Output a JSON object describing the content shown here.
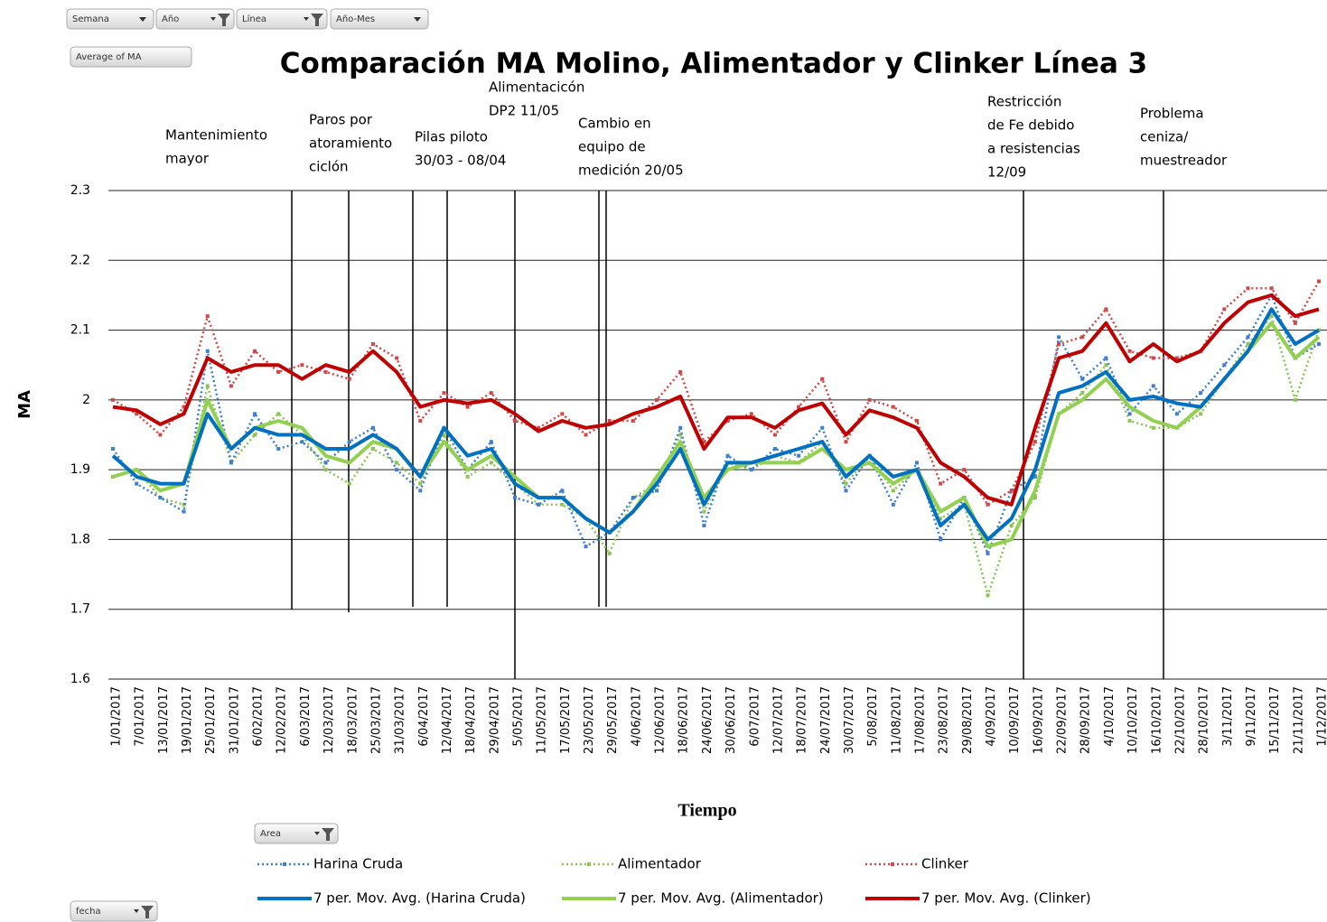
{
  "chart_data": {
    "type": "line",
    "title": "Comparación MA Molino, Alimentador y Clinker Línea 3",
    "x_label": "Tiempo",
    "y_label": "MA",
    "categories": [
      "1/01/2017",
      "7/01/2017",
      "13/01/2017",
      "19/01/2017",
      "25/01/2017",
      "31/01/2017",
      "6/02/2017",
      "12/02/2017",
      "6/03/2017",
      "12/03/2017",
      "18/03/2017",
      "25/03/2017",
      "31/03/2017",
      "6/04/2017",
      "12/04/2017",
      "18/04/2017",
      "29/04/2017",
      "5/05/2017",
      "11/05/2017",
      "17/05/2017",
      "23/05/2017",
      "29/05/2017",
      "4/06/2017",
      "12/06/2017",
      "18/06/2017",
      "24/06/2017",
      "30/06/2017",
      "6/07/2017",
      "12/07/2017",
      "18/07/2017",
      "24/07/2017",
      "30/07/2017",
      "5/08/2017",
      "11/08/2017",
      "17/08/2017",
      "23/08/2017",
      "29/08/2017",
      "4/09/2017",
      "10/09/2017",
      "16/09/2017",
      "22/09/2017",
      "28/09/2017",
      "4/10/2017",
      "10/10/2017",
      "16/10/2017",
      "22/10/2017",
      "28/10/2017",
      "3/11/2017",
      "9/11/2017",
      "15/11/2017",
      "21/11/2017",
      "1/12/2017"
    ],
    "series": [
      {
        "name": "Harina Cruda",
        "color": "#3f7fd0",
        "style": "dotted",
        "values": [
          1.93,
          1.88,
          1.86,
          1.84,
          2.07,
          1.91,
          1.98,
          1.93,
          1.94,
          1.91,
          1.94,
          1.96,
          1.9,
          1.87,
          1.96,
          1.9,
          1.94,
          1.86,
          1.85,
          1.87,
          1.79,
          1.81,
          1.86,
          1.87,
          1.96,
          1.82,
          1.92,
          1.9,
          1.93,
          1.92,
          1.96,
          1.87,
          1.92,
          1.85,
          1.91,
          1.8,
          1.86,
          1.78,
          1.87,
          1.89,
          2.09,
          2.03,
          2.06,
          1.98,
          2.02,
          1.98,
          2.01,
          2.05,
          2.09,
          2.15,
          2.06,
          2.08
        ]
      },
      {
        "name": "Alimentador",
        "color": "#8cc456",
        "style": "dotted",
        "values": [
          1.89,
          1.9,
          1.86,
          1.85,
          2.02,
          1.91,
          1.95,
          1.98,
          1.95,
          1.9,
          1.88,
          1.93,
          1.91,
          1.88,
          1.95,
          1.89,
          1.91,
          1.88,
          1.85,
          1.85,
          1.83,
          1.78,
          1.86,
          1.88,
          1.95,
          1.84,
          1.91,
          1.9,
          1.92,
          1.91,
          1.94,
          1.88,
          1.92,
          1.87,
          1.9,
          1.83,
          1.85,
          1.72,
          1.82,
          1.86,
          1.98,
          2.01,
          2.05,
          1.97,
          1.96,
          1.96,
          1.98,
          2.03,
          2.08,
          2.12,
          2.0,
          2.1
        ]
      },
      {
        "name": "Clinker",
        "color": "#d04848",
        "style": "dotted",
        "values": [
          2.0,
          1.98,
          1.95,
          1.99,
          2.12,
          2.02,
          2.07,
          2.04,
          2.05,
          2.04,
          2.03,
          2.08,
          2.06,
          1.97,
          2.01,
          1.99,
          2.01,
          1.97,
          1.96,
          1.98,
          1.95,
          1.97,
          1.97,
          2.0,
          2.04,
          1.94,
          1.97,
          1.98,
          1.95,
          1.99,
          2.03,
          1.94,
          2.0,
          1.99,
          1.97,
          1.88,
          1.9,
          1.85,
          1.87,
          1.94,
          2.08,
          2.09,
          2.13,
          2.07,
          2.06,
          2.06,
          2.07,
          2.13,
          2.16,
          2.16,
          2.11,
          2.17
        ]
      },
      {
        "name": "7 per. Mov. Avg. (Harina Cruda)",
        "color": "#0070c0",
        "style": "solid",
        "values": [
          1.92,
          1.89,
          1.88,
          1.88,
          1.98,
          1.93,
          1.96,
          1.95,
          1.95,
          1.93,
          1.93,
          1.95,
          1.93,
          1.89,
          1.96,
          1.92,
          1.93,
          1.88,
          1.86,
          1.86,
          1.83,
          1.81,
          1.84,
          1.88,
          1.93,
          1.85,
          1.91,
          1.91,
          1.92,
          1.93,
          1.94,
          1.89,
          1.92,
          1.89,
          1.9,
          1.82,
          1.85,
          1.8,
          1.83,
          1.9,
          2.01,
          2.02,
          2.04,
          2.0,
          2.005,
          1.995,
          1.99,
          2.03,
          2.07,
          2.13,
          2.08,
          2.1
        ]
      },
      {
        "name": "7 per. Mov. Avg. (Alimentador)",
        "color": "#92d050",
        "style": "solid",
        "values": [
          1.89,
          1.9,
          1.87,
          1.88,
          2.0,
          1.93,
          1.96,
          1.97,
          1.96,
          1.92,
          1.91,
          1.94,
          1.93,
          1.89,
          1.94,
          1.9,
          1.92,
          1.89,
          1.86,
          1.86,
          1.83,
          1.81,
          1.84,
          1.89,
          1.94,
          1.86,
          1.9,
          1.91,
          1.91,
          1.91,
          1.93,
          1.9,
          1.91,
          1.88,
          1.9,
          1.84,
          1.86,
          1.79,
          1.8,
          1.87,
          1.98,
          2.0,
          2.03,
          1.99,
          1.97,
          1.96,
          1.99,
          2.03,
          2.07,
          2.11,
          2.06,
          2.09
        ]
      },
      {
        "name": "7 per. Mov. Avg. (Clinker)",
        "color": "#c00000",
        "style": "solid",
        "values": [
          1.99,
          1.985,
          1.965,
          1.98,
          2.06,
          2.04,
          2.05,
          2.05,
          2.03,
          2.05,
          2.04,
          2.07,
          2.04,
          1.99,
          2.0,
          1.995,
          2.0,
          1.98,
          1.955,
          1.97,
          1.96,
          1.965,
          1.98,
          1.99,
          2.005,
          1.93,
          1.975,
          1.975,
          1.96,
          1.985,
          1.995,
          1.95,
          1.985,
          1.975,
          1.96,
          1.91,
          1.89,
          1.86,
          1.85,
          1.96,
          2.06,
          2.07,
          2.11,
          2.055,
          2.08,
          2.055,
          2.07,
          2.11,
          2.14,
          2.15,
          2.12,
          2.13
        ]
      }
    ],
    "ylim": [
      1.6,
      2.3
    ],
    "yticks": [
      1.6,
      1.7,
      1.8,
      1.9,
      2,
      2.1,
      2.2,
      2.3
    ],
    "grid": true,
    "annotations": [
      {
        "lines": [
          "Mantenimiento",
          "mayor"
        ]
      },
      {
        "lines": [
          "Paros por",
          "atoramiento",
          "ciclón"
        ]
      },
      {
        "lines": [
          "Pilas piloto",
          "30/03 - 08/04"
        ]
      },
      {
        "lines": [
          "Alimentacicón",
          "DP2  11/05"
        ]
      },
      {
        "lines": [
          "Cambio en",
          "equipo de",
          "medición  20/05"
        ]
      },
      {
        "lines": [
          "Restricción",
          "de Fe debido",
          "a resistencias",
          "12/09"
        ]
      },
      {
        "lines": [
          "Problema",
          "ceniza/",
          "muestreador"
        ]
      }
    ]
  },
  "filter_buttons": [
    {
      "label": "Semana",
      "filtered": false
    },
    {
      "label": "Año",
      "filtered": true
    },
    {
      "label": "Línea",
      "filtered": true
    },
    {
      "label": "Año-Mes",
      "filtered": false
    },
    {
      "label": "Average of MA",
      "filtered": false
    },
    {
      "label": "Area",
      "filtered": true
    },
    {
      "label": "fecha",
      "filtered": true
    }
  ]
}
